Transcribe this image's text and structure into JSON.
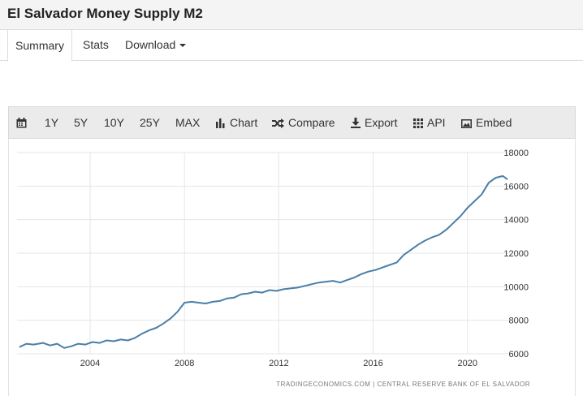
{
  "page": {
    "title": "El Salvador Money Supply M2"
  },
  "tabs": [
    {
      "label": "Summary",
      "active": true
    },
    {
      "label": "Stats",
      "active": false
    },
    {
      "label": "Download",
      "active": false
    }
  ],
  "toolbar": {
    "calendar_icon": "calendar-icon",
    "ranges": [
      "1Y",
      "5Y",
      "10Y",
      "25Y",
      "MAX"
    ],
    "chart_label": "Chart",
    "compare_label": "Compare",
    "export_label": "Export",
    "api_label": "API",
    "embed_label": "Embed"
  },
  "source": "TRADINGECONOMICS.COM | CENTRAL RESERVE BANK OF EL SALVADOR",
  "colors": {
    "line": "#4a7fa8",
    "grid": "#e6e6e6",
    "toolbar_bg": "#ebebeb"
  },
  "chart_data": {
    "type": "line",
    "title": "",
    "xlabel": "",
    "ylabel": "",
    "x_ticks": [
      2004,
      2008,
      2012,
      2016,
      2020
    ],
    "y_ticks": [
      6000,
      8000,
      10000,
      12000,
      14000,
      16000,
      18000
    ],
    "xlim": [
      2000.9,
      2021.8
    ],
    "ylim": [
      6000,
      18000
    ],
    "y_axis_side": "right",
    "grid": true,
    "series": [
      {
        "name": "",
        "x": [
          2001.0,
          2001.3,
          2001.6,
          2002.0,
          2002.3,
          2002.6,
          2002.9,
          2003.2,
          2003.5,
          2003.8,
          2004.1,
          2004.4,
          2004.7,
          2005.0,
          2005.3,
          2005.6,
          2005.9,
          2006.2,
          2006.5,
          2006.8,
          2007.1,
          2007.4,
          2007.7,
          2008.0,
          2008.3,
          2008.6,
          2008.9,
          2009.2,
          2009.5,
          2009.8,
          2010.1,
          2010.4,
          2010.7,
          2011.0,
          2011.3,
          2011.6,
          2011.9,
          2012.2,
          2012.5,
          2012.8,
          2013.1,
          2013.4,
          2013.7,
          2014.0,
          2014.3,
          2014.6,
          2014.9,
          2015.2,
          2015.5,
          2015.8,
          2016.1,
          2016.4,
          2016.7,
          2017.0,
          2017.3,
          2017.6,
          2017.9,
          2018.2,
          2018.5,
          2018.8,
          2019.1,
          2019.4,
          2019.7,
          2020.0,
          2020.3,
          2020.6,
          2020.9,
          2021.2,
          2021.5,
          2021.7
        ],
        "y": [
          6400,
          6600,
          6550,
          6650,
          6500,
          6600,
          6350,
          6450,
          6600,
          6550,
          6700,
          6650,
          6800,
          6750,
          6850,
          6800,
          6950,
          7200,
          7400,
          7550,
          7800,
          8100,
          8500,
          9050,
          9100,
          9050,
          9000,
          9100,
          9150,
          9300,
          9350,
          9550,
          9600,
          9700,
          9650,
          9800,
          9750,
          9850,
          9900,
          9950,
          10050,
          10150,
          10250,
          10300,
          10350,
          10250,
          10400,
          10550,
          10750,
          10900,
          11000,
          11150,
          11300,
          11450,
          11900,
          12200,
          12500,
          12750,
          12950,
          13100,
          13400,
          13800,
          14200,
          14700,
          15100,
          15500,
          16200,
          16500,
          16600,
          16400
        ]
      }
    ]
  }
}
